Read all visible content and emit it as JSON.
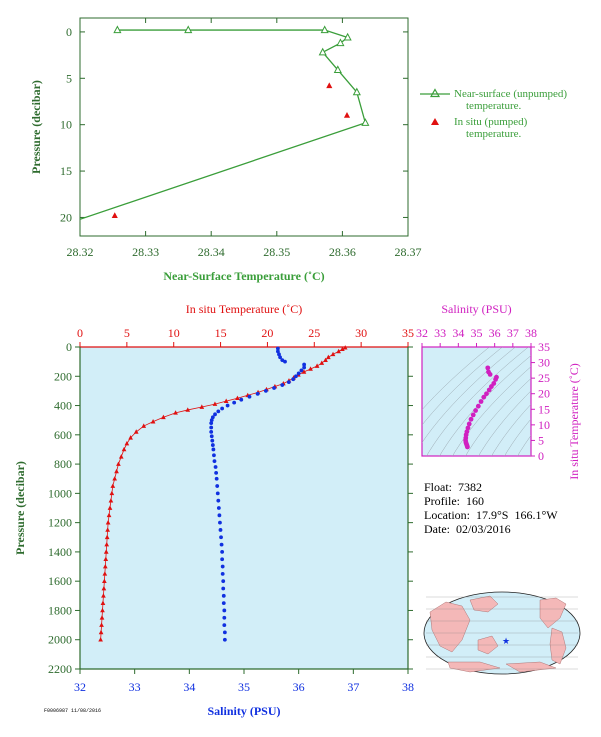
{
  "info": {
    "float_label": "Float:",
    "float_value": "7382",
    "profile_label": "Profile:",
    "profile_value": "160",
    "location_label": "Location:",
    "location_value": "17.9°S  166.1°W",
    "date_label": "Date:",
    "date_value": "02/03/2016"
  },
  "footnote": "F0006987 11/08/2016",
  "colors": {
    "green": "#3a9e3a",
    "red": "#e01010",
    "blue": "#1030e0",
    "magenta": "#d020c0",
    "axis_green": "#2e6b2e",
    "panel_bg": "#d2eef8",
    "land": "#f4b8b8",
    "ocean": "#d2eef8"
  },
  "chart_data": [
    {
      "type": "line",
      "id": "near-surface",
      "xlabel": "Near-Surface Temperature (˚C)",
      "ylabel": "Pressure (decibar)",
      "xlim": [
        28.32,
        28.37
      ],
      "ylim": [
        22,
        -1.5
      ],
      "xticks": [
        "28.32",
        "28.33",
        "28.34",
        "28.35",
        "28.36",
        "28.37"
      ],
      "yticks": [
        "0",
        "5",
        "10",
        "15",
        "20"
      ],
      "legend": [
        "Near-surface (unpumped)",
        "temperature.",
        "In situ (pumped)",
        "temperature."
      ],
      "legend_position": "right",
      "series": [
        {
          "name": "Near-surface (unpumped) temperature.",
          "marker": "triangle-open",
          "x": [
            28.3257,
            28.3365,
            28.3573,
            28.3608,
            28.3597,
            28.357,
            28.3593,
            28.3622,
            28.3635,
            28.32
          ],
          "y": [
            -0.2,
            -0.2,
            -0.2,
            0.6,
            1.2,
            2.2,
            4.1,
            6.5,
            9.8,
            20.2
          ]
        },
        {
          "name": "In situ (pumped) temperature.",
          "marker": "triangle-filled",
          "x": [
            28.358,
            28.3607,
            28.3253
          ],
          "y": [
            5.8,
            9.0,
            19.8
          ]
        }
      ]
    },
    {
      "type": "scatter",
      "id": "profile",
      "ylabel": "Pressure (decibar)",
      "top_xlabel": "In situ Temperature (˚C)",
      "bottom_xlabel": "Salinity (PSU)",
      "temp_lim": [
        0,
        35
      ],
      "sal_lim": [
        32,
        38
      ],
      "pres_lim": [
        0,
        2200
      ],
      "temp_ticks": [
        "0",
        "5",
        "10",
        "15",
        "20",
        "25",
        "30",
        "35"
      ],
      "sal_ticks": [
        "32",
        "33",
        "34",
        "35",
        "36",
        "37",
        "38"
      ],
      "pres_ticks": [
        "0",
        "200",
        "400",
        "600",
        "800",
        "1000",
        "1200",
        "1400",
        "1600",
        "1800",
        "2000",
        "2200"
      ],
      "temperature_profile": [
        [
          28.3,
          5
        ],
        [
          28.0,
          15
        ],
        [
          27.6,
          30
        ],
        [
          27.0,
          50
        ],
        [
          26.5,
          70
        ],
        [
          26.2,
          90
        ],
        [
          25.8,
          110
        ],
        [
          25.3,
          130
        ],
        [
          24.6,
          150
        ],
        [
          23.9,
          170
        ],
        [
          23.3,
          190
        ],
        [
          22.8,
          210
        ],
        [
          22.3,
          230
        ],
        [
          21.7,
          250
        ],
        [
          20.8,
          270
        ],
        [
          19.9,
          290
        ],
        [
          19.0,
          310
        ],
        [
          17.9,
          330
        ],
        [
          16.8,
          350
        ],
        [
          15.6,
          370
        ],
        [
          14.4,
          390
        ],
        [
          13.0,
          410
        ],
        [
          11.5,
          430
        ],
        [
          10.2,
          450
        ],
        [
          8.9,
          480
        ],
        [
          7.8,
          510
        ],
        [
          6.8,
          540
        ],
        [
          6.0,
          580
        ],
        [
          5.4,
          620
        ],
        [
          5.0,
          660
        ],
        [
          4.7,
          700
        ],
        [
          4.4,
          750
        ],
        [
          4.1,
          800
        ],
        [
          3.9,
          850
        ],
        [
          3.7,
          900
        ],
        [
          3.5,
          950
        ],
        [
          3.4,
          1000
        ],
        [
          3.3,
          1050
        ],
        [
          3.2,
          1100
        ],
        [
          3.1,
          1150
        ],
        [
          3.0,
          1200
        ],
        [
          2.95,
          1250
        ],
        [
          2.9,
          1300
        ],
        [
          2.85,
          1350
        ],
        [
          2.8,
          1400
        ],
        [
          2.75,
          1450
        ],
        [
          2.7,
          1500
        ],
        [
          2.65,
          1550
        ],
        [
          2.6,
          1600
        ],
        [
          2.55,
          1650
        ],
        [
          2.5,
          1700
        ],
        [
          2.45,
          1750
        ],
        [
          2.4,
          1800
        ],
        [
          2.35,
          1850
        ],
        [
          2.3,
          1900
        ],
        [
          2.25,
          1950
        ],
        [
          2.2,
          2000
        ]
      ],
      "salinity_profile": [
        [
          35.62,
          10
        ],
        [
          35.62,
          30
        ],
        [
          35.64,
          50
        ],
        [
          35.66,
          70
        ],
        [
          35.7,
          90
        ],
        [
          35.75,
          100
        ],
        [
          36.1,
          120
        ],
        [
          36.1,
          140
        ],
        [
          36.05,
          160
        ],
        [
          36.0,
          180
        ],
        [
          35.95,
          200
        ],
        [
          35.9,
          220
        ],
        [
          35.82,
          240
        ],
        [
          35.7,
          260
        ],
        [
          35.55,
          280
        ],
        [
          35.4,
          300
        ],
        [
          35.25,
          320
        ],
        [
          35.1,
          340
        ],
        [
          34.95,
          360
        ],
        [
          34.82,
          380
        ],
        [
          34.7,
          400
        ],
        [
          34.6,
          420
        ],
        [
          34.53,
          440
        ],
        [
          34.47,
          460
        ],
        [
          34.43,
          480
        ],
        [
          34.41,
          500
        ],
        [
          34.4,
          520
        ],
        [
          34.4,
          550
        ],
        [
          34.4,
          580
        ],
        [
          34.41,
          610
        ],
        [
          34.42,
          640
        ],
        [
          34.43,
          670
        ],
        [
          34.44,
          700
        ],
        [
          34.45,
          740
        ],
        [
          34.46,
          780
        ],
        [
          34.48,
          820
        ],
        [
          34.49,
          860
        ],
        [
          34.5,
          900
        ],
        [
          34.51,
          950
        ],
        [
          34.52,
          1000
        ],
        [
          34.53,
          1050
        ],
        [
          34.54,
          1100
        ],
        [
          34.55,
          1150
        ],
        [
          34.56,
          1200
        ],
        [
          34.57,
          1250
        ],
        [
          34.58,
          1300
        ],
        [
          34.59,
          1350
        ],
        [
          34.6,
          1400
        ],
        [
          34.6,
          1450
        ],
        [
          34.61,
          1500
        ],
        [
          34.61,
          1550
        ],
        [
          34.62,
          1600
        ],
        [
          34.62,
          1650
        ],
        [
          34.63,
          1700
        ],
        [
          34.63,
          1750
        ],
        [
          34.64,
          1800
        ],
        [
          34.64,
          1850
        ],
        [
          34.64,
          1900
        ],
        [
          34.65,
          1950
        ],
        [
          34.65,
          2000
        ]
      ]
    },
    {
      "type": "scatter",
      "id": "ts-diagram",
      "top_xlabel": "Salinity (PSU)",
      "right_ylabel": "In situ Temperature (˚C)",
      "xlim": [
        32,
        38
      ],
      "ylim": [
        0,
        35
      ],
      "xticks": [
        "32",
        "33",
        "34",
        "35",
        "36",
        "37",
        "38"
      ],
      "yticks": [
        "0",
        "5",
        "10",
        "15",
        "20",
        "25",
        "30",
        "35"
      ],
      "points": [
        [
          35.62,
          28.3
        ],
        [
          35.66,
          27.0
        ],
        [
          35.75,
          26.2
        ],
        [
          36.1,
          25.3
        ],
        [
          36.05,
          24.6
        ],
        [
          35.95,
          23.3
        ],
        [
          35.82,
          22.3
        ],
        [
          35.7,
          21.2
        ],
        [
          35.55,
          20.0
        ],
        [
          35.4,
          18.9
        ],
        [
          35.25,
          17.5
        ],
        [
          35.1,
          16.0
        ],
        [
          34.95,
          14.6
        ],
        [
          34.82,
          13.2
        ],
        [
          34.7,
          11.8
        ],
        [
          34.6,
          10.3
        ],
        [
          34.53,
          9.0
        ],
        [
          34.47,
          7.8
        ],
        [
          34.43,
          6.8
        ],
        [
          34.41,
          5.8
        ],
        [
          34.4,
          5.0
        ],
        [
          34.42,
          4.3
        ],
        [
          34.45,
          3.8
        ],
        [
          34.48,
          3.3
        ],
        [
          34.5,
          2.9
        ]
      ]
    }
  ]
}
